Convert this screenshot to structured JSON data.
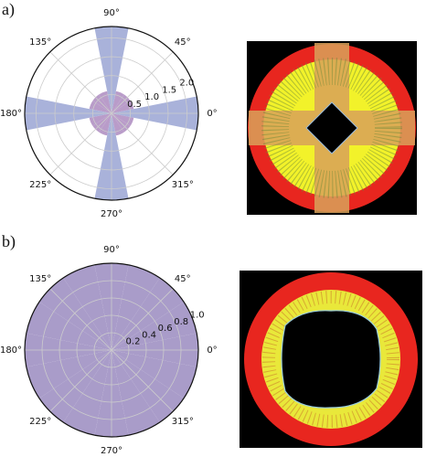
{
  "panel_labels": [
    "a)",
    "b)"
  ],
  "chart_data": [
    {
      "type": "polar_bar",
      "angles": [
        0,
        22.5,
        45,
        67.5,
        90,
        112.5,
        135,
        157.5,
        180,
        202.5,
        225,
        247.5,
        270,
        292.5,
        315,
        337.5
      ],
      "values": [
        2.3,
        0.6,
        0.6,
        0.6,
        2.3,
        0.6,
        0.6,
        0.6,
        2.3,
        0.6,
        0.6,
        0.6,
        2.3,
        0.6,
        0.6,
        0.6
      ],
      "bar_width": 22.5,
      "colors": [
        "#a9b2da",
        "#b99cc9",
        "#b99cc9",
        "#b99cc9",
        "#a9b2da",
        "#b99cc9",
        "#b99cc9",
        "#b99cc9",
        "#a9b2da",
        "#b99cc9",
        "#b99cc9",
        "#b99cc9",
        "#a9b2da",
        "#b99cc9",
        "#b99cc9",
        "#b99cc9"
      ],
      "rlim": [
        0,
        2.3
      ],
      "rticks": [
        0.5,
        "1.0",
        1.5,
        "2.0"
      ],
      "thetaticks": [
        {
          "value": 0,
          "label": "0°"
        },
        {
          "value": 45,
          "label": "45°"
        },
        {
          "value": 90,
          "label": "90°"
        },
        {
          "value": 135,
          "label": "135°"
        },
        {
          "value": 180,
          "label": "180°"
        },
        {
          "value": 225,
          "label": "225°"
        },
        {
          "value": 270,
          "label": "270°"
        },
        {
          "value": 315,
          "label": "315°"
        }
      ],
      "grid": true
    },
    {
      "type": "polar_bar",
      "angles": [
        0,
        22.5,
        45,
        67.5,
        90,
        112.5,
        135,
        157.5,
        180,
        202.5,
        225,
        247.5,
        270,
        292.5,
        315,
        337.5
      ],
      "values": [
        1,
        1,
        1,
        1,
        1,
        1,
        1,
        1,
        1,
        1,
        1,
        1,
        1,
        1,
        1,
        1
      ],
      "bar_width": 22.5,
      "colors": [
        "#a99cc9",
        "#a99cc9",
        "#a99cc9",
        "#a99cc9",
        "#a99cc9",
        "#a99cc9",
        "#a99cc9",
        "#a99cc9",
        "#a99cc9",
        "#a99cc9",
        "#a99cc9",
        "#a99cc9",
        "#a99cc9",
        "#a99cc9",
        "#a99cc9",
        "#a99cc9"
      ],
      "rlim": [
        0,
        1.0
      ],
      "rticks": [
        0.2,
        0.4,
        0.6,
        0.8,
        "1.0"
      ],
      "thetaticks": [
        {
          "value": 0,
          "label": "0°"
        },
        {
          "value": 45,
          "label": "45°"
        },
        {
          "value": 90,
          "label": "90°"
        },
        {
          "value": 135,
          "label": "135°"
        },
        {
          "value": 180,
          "label": "180°"
        },
        {
          "value": 225,
          "label": "225°"
        },
        {
          "value": 270,
          "label": "270°"
        },
        {
          "value": 315,
          "label": "315°"
        }
      ],
      "grid": true
    }
  ]
}
